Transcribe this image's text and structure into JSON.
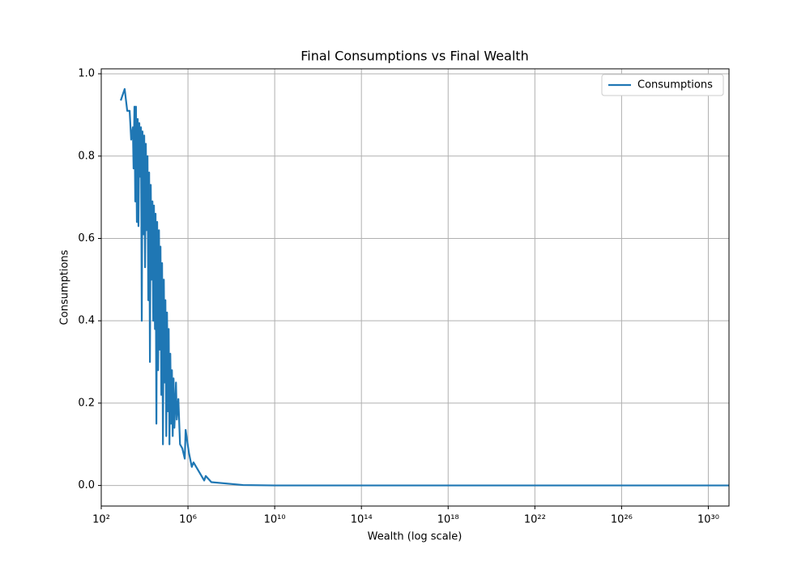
{
  "chart_data": {
    "type": "line",
    "title": "Final Consumptions vs Final Wealth",
    "x_label": "Wealth (log scale)",
    "y_label": "Consumptions",
    "x_scale": "log",
    "grid": true,
    "legend": "upper right",
    "xlim": [
      100,
      9e+30
    ],
    "ylim": [
      -0.05,
      1.012
    ],
    "xticks": [
      {
        "value": 100.0,
        "label": "10²"
      },
      {
        "value": 1000000.0,
        "label": "10⁶"
      },
      {
        "value": 10000000000.0,
        "label": "10¹⁰"
      },
      {
        "value": 100000000000000.0,
        "label": "10¹⁴"
      },
      {
        "value": 1e+18,
        "label": "10¹⁸"
      },
      {
        "value": 1e+22,
        "label": "10²²"
      },
      {
        "value": 1e+26,
        "label": "10²⁶"
      },
      {
        "value": 1e+30,
        "label": "10³⁰"
      }
    ],
    "yticks": [
      {
        "value": 0,
        "label": "0.0"
      },
      {
        "value": 0.2,
        "label": "0.2"
      },
      {
        "value": 0.4,
        "label": "0.4"
      },
      {
        "value": 0.6,
        "label": "0.6"
      },
      {
        "value": 0.8,
        "label": "0.8"
      },
      {
        "value": 1,
        "label": "1.0"
      }
    ],
    "x": [
      794,
      1200,
      1580,
      2040,
      2400,
      2870,
      3100,
      3400,
      3700,
      4000,
      4400,
      4800,
      5200,
      5700,
      6200,
      6800,
      7400,
      8000,
      8800,
      9600,
      10500,
      11400,
      12400,
      13600,
      14800,
      16200,
      17600,
      19200,
      21000,
      23000,
      25000,
      27000,
      30000,
      32000,
      35000,
      38000,
      42000,
      46000,
      50000,
      54000,
      59000,
      64000,
      70000,
      77000,
      84000,
      91000,
      100000,
      108000,
      118000,
      129000,
      140000,
      153000,
      167000,
      182000,
      198000,
      216000,
      236000,
      280000,
      305000,
      360000,
      430000,
      550000,
      710000,
      780000,
      1100000,
      1500000,
      1800000,
      5600000,
      6600000,
      12000000,
      350000000,
      10000000000,
      9e+30
    ],
    "series": [
      {
        "name": "Consumptions",
        "color": "#1f77b4",
        "values": [
          0.935,
          0.963,
          0.91,
          0.91,
          0.84,
          0.87,
          0.77,
          0.92,
          0.69,
          0.92,
          0.64,
          0.89,
          0.63,
          0.88,
          0.75,
          0.87,
          0.4,
          0.86,
          0.61,
          0.85,
          0.53,
          0.83,
          0.62,
          0.8,
          0.45,
          0.76,
          0.3,
          0.73,
          0.5,
          0.69,
          0.4,
          0.68,
          0.38,
          0.66,
          0.15,
          0.64,
          0.28,
          0.62,
          0.33,
          0.58,
          0.22,
          0.54,
          0.1,
          0.5,
          0.25,
          0.45,
          0.12,
          0.42,
          0.18,
          0.38,
          0.1,
          0.32,
          0.15,
          0.28,
          0.12,
          0.26,
          0.14,
          0.25,
          0.16,
          0.21,
          0.1,
          0.09,
          0.065,
          0.135,
          0.08,
          0.045,
          0.056,
          0.012,
          0.023,
          0.008,
          0.001,
          0,
          0
        ]
      }
    ]
  }
}
